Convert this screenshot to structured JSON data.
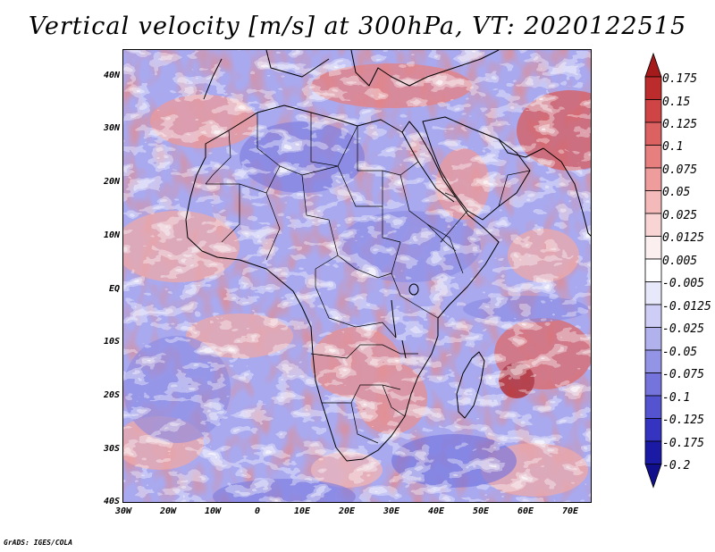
{
  "title": "Vertical velocity [m/s] at 300hPa, VT: 2020122515",
  "footer": "GrADS: IGES/COLA",
  "map": {
    "lat_labels": [
      "40N",
      "30N",
      "20N",
      "10N",
      "EQ",
      "10S",
      "20S",
      "30S",
      "40S"
    ],
    "lon_labels": [
      "30W",
      "20W",
      "10W",
      "0",
      "10E",
      "20E",
      "30E",
      "40E",
      "50E",
      "60E",
      "70E"
    ],
    "lat_range": [
      -40,
      45
    ],
    "lon_range": [
      -30,
      75
    ]
  },
  "colorbar": {
    "levels": [
      "0.175",
      "0.15",
      "0.125",
      "0.1",
      "0.075",
      "0.05",
      "0.025",
      "0.0125",
      "0.005",
      "-0.005",
      "-0.0125",
      "-0.025",
      "-0.05",
      "-0.075",
      "-0.1",
      "-0.125",
      "-0.175",
      "-0.2"
    ],
    "colors": [
      "#a51a1a",
      "#bd2c2c",
      "#cf4545",
      "#dc6262",
      "#e77f7f",
      "#ee9c9c",
      "#f4b9b9",
      "#f8d4d4",
      "#fcefef",
      "#ffffff",
      "#e8e8fb",
      "#cdcdf5",
      "#b1b1ee",
      "#9494e6",
      "#7474dc",
      "#5454d0",
      "#3434c0",
      "#1a1aa5",
      "#120f8c"
    ]
  }
}
